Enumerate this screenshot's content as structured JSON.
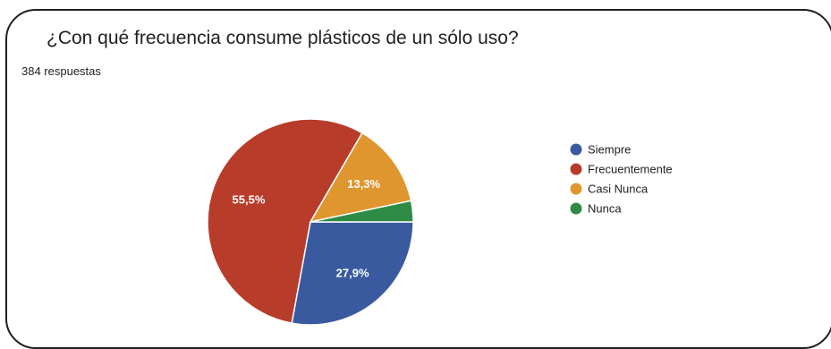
{
  "header": {
    "question": "¿Con qué frecuencia consume plásticos de un sólo uso?",
    "responses": "384 respuestas"
  },
  "chart_data": {
    "type": "pie",
    "categories": [
      "Siempre",
      "Frecuentemente",
      "Casi Nunca",
      "Nunca"
    ],
    "values": [
      27.9,
      55.5,
      13.3,
      3.3
    ],
    "data_labels": [
      "27,9%",
      "55,5%",
      "13,3%",
      ""
    ],
    "colors": [
      "#3a5aa0",
      "#b83c2a",
      "#e0962f",
      "#2e8b45"
    ],
    "legend": {
      "position": "right"
    }
  }
}
